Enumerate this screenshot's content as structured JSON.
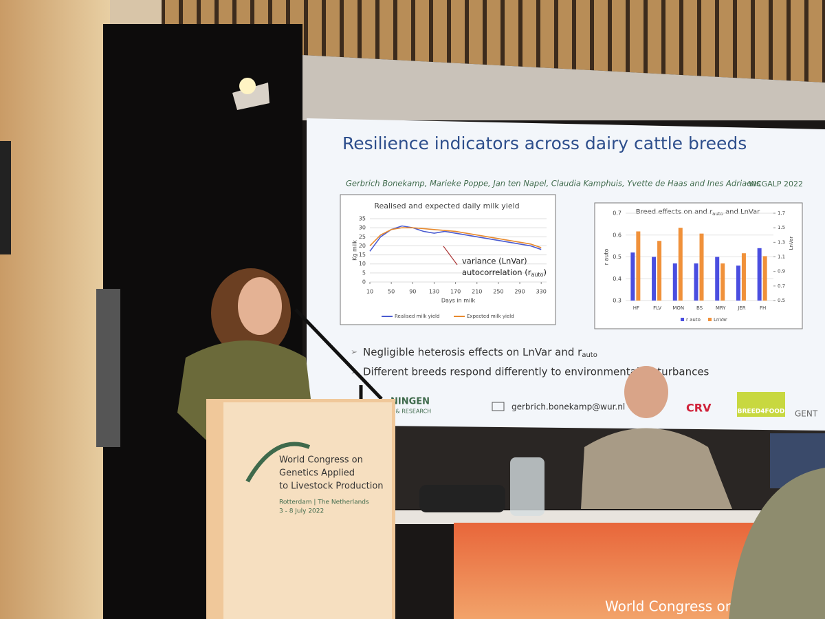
{
  "slide": {
    "title": "Resilience indicators across dairy cattle breeds",
    "authors": "Gerbrich Bonekamp, Marieke Poppe, Jan ten Napel, Claudia Kamphuis, Yvette de Haas and Ines Adriaens",
    "event": "WCGALP 2022",
    "charts": [
      {
        "type": "line",
        "title": "Realised and expected daily milk yield",
        "ylabel": "Kg milk",
        "xlabel": "Days in milk",
        "x": [
          10,
          30,
          50,
          70,
          90,
          110,
          130,
          150,
          170,
          190,
          210,
          230,
          250,
          270,
          290,
          310,
          330
        ],
        "xlim": [
          10,
          340
        ],
        "xticks": [
          10,
          50,
          90,
          130,
          170,
          210,
          250,
          290,
          330
        ],
        "ylim": [
          0,
          35
        ],
        "yticks": [
          0,
          5,
          10,
          15,
          20,
          25,
          30,
          35
        ],
        "grid": true,
        "series": [
          {
            "name": "Realised milk yield",
            "color": "#4a5bd0",
            "values": [
              17,
              25,
              29,
              31,
              30,
              28,
              27,
              28,
              27,
              26,
              25,
              24,
              23,
              22,
              21,
              20,
              18
            ]
          },
          {
            "name": "Expected milk yield",
            "color": "#e88a2e",
            "values": [
              20,
              26,
              29,
              30,
              30,
              29.5,
              29,
              28.5,
              28,
              27,
              26,
              25,
              24,
              23,
              22,
              21,
              19
            ]
          }
        ],
        "annotation": {
          "line1": "variance (LnVar)",
          "line2": "autocorrelation (r",
          "line2_sub": "auto",
          "line2_end": ")"
        }
      },
      {
        "type": "bar",
        "title": "Breed effects on and r",
        "title_sub": "auto",
        "title_end": " and LnVar",
        "ylabel": "r auto",
        "y2label": "LnVar",
        "categories": [
          "HF",
          "FLV",
          "MON",
          "BS",
          "MRY",
          "JER",
          "FH"
        ],
        "ylim": [
          0.3,
          0.7
        ],
        "yticks": [
          0.3,
          0.4,
          0.5,
          0.6,
          0.7
        ],
        "y2lim": [
          0.5,
          1.7
        ],
        "y2ticks": [
          0.5,
          0.7,
          0.9,
          1.1,
          1.3,
          1.5,
          1.7
        ],
        "grid": true,
        "series": [
          {
            "name": "r auto",
            "color": "#4a4ee0",
            "values": [
              0.52,
              0.5,
              0.47,
              0.47,
              0.5,
              0.46,
              0.54
            ]
          },
          {
            "name": "LnVar",
            "color": "#f0913a",
            "axis": "y2",
            "values": [
              1.45,
              1.32,
              1.5,
              1.42,
              1.01,
              1.15,
              1.11
            ]
          }
        ]
      }
    ],
    "bullets": [
      {
        "text": "Negligible heterosis effects on LnVar and r",
        "sub": "auto"
      },
      {
        "text": "Different breeds respond differently to environmental disturbances"
      }
    ],
    "logo_left": [
      "NINGEN",
      "Y & RESEARCH"
    ],
    "email": "gerbrich.bonekamp@wur.nl",
    "logos": [
      "CRV",
      "BREED4FOOD",
      "GENT"
    ]
  },
  "podium": {
    "lines": [
      "World Congress on",
      "Genetics Applied",
      "to Livestock Production"
    ],
    "place": "Rotterdam | The Netherlands",
    "dates": "3 - 8 July 2022"
  },
  "banner": {
    "text": "World Congress on"
  }
}
